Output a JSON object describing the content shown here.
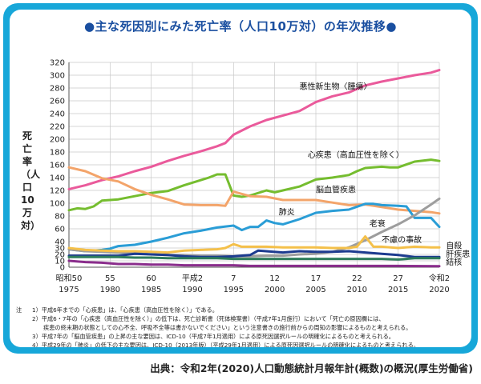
{
  "title": "●主な死因別にみた死亡率（人口10万対）の年次推移●",
  "ylabel": "死亡率（人口10万対）",
  "notes_head": "注",
  "notes": [
    "1）平成6年までの「心疾患」は、「心疾患（高血圧性を除く）」である。",
    "2）平成6・7年の「心疾患（高血圧性を除く）」の低下は、死亡診断書（死体検案書）（平成7年1月施行）において「死亡の原因欄には、",
    "疾患の終末期の状態としての心不全、呼吸不全等は書かないでください」という注意書きの施行前からの周知の影響によるものと考えられる。",
    "3）平成7年の「脳血管疾患」の上昇の主な要因は、ICD-10（平成7年1月適用）による原死因選択ルールの明確化によるものと考えられる。",
    "4）平成29年の「肺炎」の低下の主な要因は、ICD-10（2013年版）（平成29年1月適用）による原死因選択ルールの明確化によるものと考えられる。"
  ],
  "source": "出典：令和2年(2020)人口動態統計月報年計(概数)の概況(厚生労働省)",
  "colors": {
    "frame": "#17a7d9",
    "title": "#1a4fa0",
    "grid": "#c8c8c8"
  },
  "chart_data": {
    "type": "line",
    "title": "●主な死因別にみた死亡率（人口10万対）の年次推移●",
    "ylabel": "死亡率（人口10万対）",
    "xlabel": "",
    "xlim": [
      1975,
      2020
    ],
    "ylim": [
      0,
      320
    ],
    "yticks": [
      0,
      10,
      20,
      30,
      40,
      60,
      80,
      100,
      120,
      140,
      160,
      180,
      200,
      220,
      240,
      260,
      280,
      300,
      320
    ],
    "grid": true,
    "xticks": [
      {
        "year": 1975,
        "era": "昭和50",
        "ad": "1975"
      },
      {
        "year": 1980,
        "era": "55",
        "ad": "1980"
      },
      {
        "year": 1985,
        "era": "60",
        "ad": "1985"
      },
      {
        "year": 1990,
        "era": "平成2",
        "ad": "1990"
      },
      {
        "year": 1995,
        "era": "7",
        "ad": "1995"
      },
      {
        "year": 2000,
        "era": "12",
        "ad": "2000"
      },
      {
        "year": 2005,
        "era": "17",
        "ad": "2005"
      },
      {
        "year": 2010,
        "era": "22",
        "ad": "2010"
      },
      {
        "year": 2015,
        "era": "27",
        "ad": "2015"
      },
      {
        "year": 2020,
        "era": "令和2",
        "ad": "2020"
      }
    ],
    "series": [
      {
        "name": "悪性新生物〈腫瘍〉",
        "color": "#ea5a9b",
        "label_year": 2003,
        "label_value": 278,
        "points": [
          [
            1975,
            122
          ],
          [
            1977,
            128
          ],
          [
            1979,
            136
          ],
          [
            1981,
            142
          ],
          [
            1983,
            150
          ],
          [
            1985,
            157
          ],
          [
            1987,
            166
          ],
          [
            1989,
            174
          ],
          [
            1991,
            181
          ],
          [
            1993,
            189
          ],
          [
            1994,
            194
          ],
          [
            1995,
            207
          ],
          [
            1997,
            220
          ],
          [
            1999,
            230
          ],
          [
            2001,
            237
          ],
          [
            2003,
            244
          ],
          [
            2005,
            258
          ],
          [
            2007,
            267
          ],
          [
            2009,
            273
          ],
          [
            2011,
            284
          ],
          [
            2013,
            290
          ],
          [
            2015,
            295
          ],
          [
            2017,
            300
          ],
          [
            2019,
            304
          ],
          [
            2020,
            308
          ]
        ]
      },
      {
        "name": "心疾患（高血圧性を除く）",
        "color": "#75bd2f",
        "label_year": 2004,
        "label_value": 171,
        "points": [
          [
            1975,
            89
          ],
          [
            1976,
            92
          ],
          [
            1977,
            91
          ],
          [
            1978,
            95
          ],
          [
            1979,
            104
          ],
          [
            1981,
            106
          ],
          [
            1983,
            111
          ],
          [
            1985,
            116
          ],
          [
            1987,
            119
          ],
          [
            1989,
            128
          ],
          [
            1991,
            136
          ],
          [
            1992,
            140
          ],
          [
            1993,
            145
          ],
          [
            1994,
            145
          ],
          [
            1995,
            112
          ],
          [
            1996,
            110
          ],
          [
            1997,
            112
          ],
          [
            1999,
            120
          ],
          [
            2000,
            117
          ],
          [
            2001,
            120
          ],
          [
            2003,
            126
          ],
          [
            2005,
            137
          ],
          [
            2007,
            140
          ],
          [
            2009,
            144
          ],
          [
            2010,
            150
          ],
          [
            2011,
            155
          ],
          [
            2013,
            157
          ],
          [
            2014,
            156
          ],
          [
            2015,
            156
          ],
          [
            2017,
            165
          ],
          [
            2019,
            168
          ],
          [
            2020,
            166
          ]
        ]
      },
      {
        "name": "脳血管疾患",
        "color": "#f3a46a",
        "label_year": 2005,
        "label_value": 117,
        "points": [
          [
            1975,
            156
          ],
          [
            1977,
            150
          ],
          [
            1979,
            139
          ],
          [
            1981,
            134
          ],
          [
            1983,
            122
          ],
          [
            1985,
            113
          ],
          [
            1987,
            106
          ],
          [
            1989,
            98
          ],
          [
            1991,
            97
          ],
          [
            1993,
            97
          ],
          [
            1994,
            96
          ],
          [
            1995,
            118
          ],
          [
            1997,
            111
          ],
          [
            1999,
            110
          ],
          [
            2001,
            105
          ],
          [
            2003,
            105
          ],
          [
            2005,
            105
          ],
          [
            2007,
            101
          ],
          [
            2009,
            97
          ],
          [
            2011,
            98
          ],
          [
            2013,
            94
          ],
          [
            2015,
            90
          ],
          [
            2017,
            88
          ],
          [
            2019,
            86
          ],
          [
            2020,
            84
          ]
        ]
      },
      {
        "name": "肺炎",
        "color": "#2a9dd6",
        "label_year": 2000.5,
        "label_value": 82,
        "points": [
          [
            1975,
            28
          ],
          [
            1977,
            25
          ],
          [
            1979,
            27
          ],
          [
            1980,
            29
          ],
          [
            1981,
            33
          ],
          [
            1983,
            35
          ],
          [
            1985,
            40
          ],
          [
            1987,
            46
          ],
          [
            1989,
            53
          ],
          [
            1991,
            57
          ],
          [
            1993,
            62
          ],
          [
            1995,
            65
          ],
          [
            1996,
            58
          ],
          [
            1997,
            63
          ],
          [
            1998,
            63
          ],
          [
            1999,
            73
          ],
          [
            2000,
            69
          ],
          [
            2001,
            67
          ],
          [
            2003,
            75
          ],
          [
            2005,
            85
          ],
          [
            2007,
            88
          ],
          [
            2009,
            90
          ],
          [
            2011,
            99
          ],
          [
            2012,
            99
          ],
          [
            2013,
            97
          ],
          [
            2015,
            96
          ],
          [
            2016,
            95
          ],
          [
            2017,
            77
          ],
          [
            2019,
            77
          ],
          [
            2020,
            63
          ]
        ]
      },
      {
        "name": "老衰",
        "color": "#9d9d9d",
        "label_year": 2011.5,
        "label_value": 64,
        "points": [
          [
            1975,
            28
          ],
          [
            1977,
            25
          ],
          [
            1979,
            24
          ],
          [
            1981,
            23
          ],
          [
            1983,
            22
          ],
          [
            1985,
            20
          ],
          [
            1987,
            19
          ],
          [
            1989,
            19
          ],
          [
            1991,
            18
          ],
          [
            1993,
            18
          ],
          [
            1995,
            17
          ],
          [
            1997,
            17
          ],
          [
            1999,
            18
          ],
          [
            2001,
            18
          ],
          [
            2003,
            20
          ],
          [
            2005,
            21
          ],
          [
            2007,
            24
          ],
          [
            2009,
            31
          ],
          [
            2011,
            42
          ],
          [
            2013,
            55
          ],
          [
            2015,
            67
          ],
          [
            2017,
            81
          ],
          [
            2019,
            98
          ],
          [
            2020,
            107
          ]
        ]
      },
      {
        "name": "不慮の事故",
        "color": "#f4c04a",
        "label_year": 2013,
        "label_value": 39,
        "points": [
          [
            1975,
            30
          ],
          [
            1977,
            27
          ],
          [
            1979,
            26
          ],
          [
            1981,
            25
          ],
          [
            1983,
            25
          ],
          [
            1985,
            24
          ],
          [
            1987,
            23
          ],
          [
            1989,
            26
          ],
          [
            1991,
            27
          ],
          [
            1993,
            28
          ],
          [
            1994,
            30
          ],
          [
            1995,
            36
          ],
          [
            1996,
            32
          ],
          [
            1997,
            32
          ],
          [
            1999,
            32
          ],
          [
            2001,
            31
          ],
          [
            2003,
            31
          ],
          [
            2005,
            31
          ],
          [
            2007,
            30
          ],
          [
            2009,
            30
          ],
          [
            2010,
            32
          ],
          [
            2011,
            48
          ],
          [
            2012,
            32
          ],
          [
            2013,
            32
          ],
          [
            2015,
            30
          ],
          [
            2017,
            32
          ],
          [
            2019,
            31
          ],
          [
            2020,
            31
          ]
        ]
      },
      {
        "name": "自殺",
        "color": "#1d3b8f",
        "label_year": 2020.8,
        "label_value": 29.5,
        "points": [
          [
            1975,
            18
          ],
          [
            1977,
            18
          ],
          [
            1979,
            18
          ],
          [
            1981,
            18
          ],
          [
            1983,
            21
          ],
          [
            1985,
            20
          ],
          [
            1987,
            19
          ],
          [
            1989,
            17
          ],
          [
            1991,
            16
          ],
          [
            1993,
            16
          ],
          [
            1995,
            17
          ],
          [
            1997,
            19
          ],
          [
            1998,
            26
          ],
          [
            2001,
            23
          ],
          [
            2003,
            25
          ],
          [
            2005,
            24
          ],
          [
            2007,
            24
          ],
          [
            2009,
            25
          ],
          [
            2011,
            23
          ],
          [
            2013,
            21
          ],
          [
            2015,
            19
          ],
          [
            2017,
            16
          ],
          [
            2019,
            16
          ],
          [
            2020,
            16
          ]
        ]
      },
      {
        "name": "肝疾患",
        "color": "#2e7d5b",
        "label_year": 2020.8,
        "label_value": 16.5,
        "points": [
          [
            1975,
            16
          ],
          [
            1977,
            16
          ],
          [
            1979,
            16
          ],
          [
            1981,
            16
          ],
          [
            1983,
            15
          ],
          [
            1985,
            15
          ],
          [
            1987,
            14
          ],
          [
            1989,
            14
          ],
          [
            1991,
            14
          ],
          [
            1993,
            14
          ],
          [
            1995,
            13
          ],
          [
            1997,
            13
          ],
          [
            1999,
            13
          ],
          [
            2001,
            13
          ],
          [
            2003,
            13
          ],
          [
            2005,
            13
          ],
          [
            2007,
            13
          ],
          [
            2009,
            13
          ],
          [
            2011,
            13
          ],
          [
            2013,
            13
          ],
          [
            2015,
            12
          ],
          [
            2017,
            14
          ],
          [
            2019,
            14
          ],
          [
            2020,
            14
          ]
        ]
      },
      {
        "name": "結核",
        "color": "#8a2d8c",
        "label_year": 2020.8,
        "label_value": 3.5,
        "points": [
          [
            1975,
            10
          ],
          [
            1977,
            8
          ],
          [
            1979,
            7
          ],
          [
            1981,
            5
          ],
          [
            1983,
            5
          ],
          [
            1985,
            4
          ],
          [
            1987,
            4
          ],
          [
            1989,
            3
          ],
          [
            1991,
            3
          ],
          [
            1993,
            3
          ],
          [
            1995,
            3
          ],
          [
            1997,
            2
          ],
          [
            1999,
            2
          ],
          [
            2001,
            2
          ],
          [
            2005,
            2
          ],
          [
            2010,
            2
          ],
          [
            2015,
            2
          ],
          [
            2020,
            1.5
          ]
        ]
      }
    ]
  }
}
